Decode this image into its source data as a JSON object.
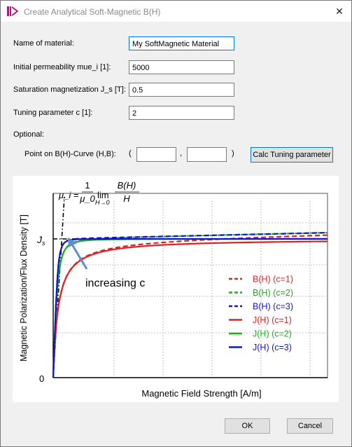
{
  "window": {
    "title": "Create Analytical Soft-Magnetic B(H)",
    "close_symbol": "✕"
  },
  "form": {
    "name_label": "Name of material:",
    "name_value": "My SoftMagnetic Material",
    "mu_label": "Initial permeability mue_i [1]:",
    "mu_value": "5000",
    "js_label": "Saturation magnetization J_s [T]:",
    "js_value": "0.5",
    "c_label": "Tuning parameter c [1]:",
    "c_value": "2",
    "optional_label": "Optional:",
    "point_label": "Point on B(H)-Curve (H,B):",
    "paren_open": "(",
    "comma": ",",
    "paren_close": ")",
    "h_value": "",
    "b_value": "",
    "calc_button": "Calc Tuning parameter"
  },
  "buttons": {
    "ok": "OK",
    "cancel": "Cancel"
  },
  "colors": {
    "red": "#e02020",
    "green": "#18b018",
    "blue": "#1414c8",
    "arrow": "#5b8fc9"
  },
  "chart_data": {
    "type": "line",
    "xlabel": "Magnetic Field Strength [A/m]",
    "ylabel": "Magnetic Polarization/Flux Density [T]",
    "origin_label": "0",
    "js_label": "J_s",
    "formula": {
      "lhs": "μ_i =",
      "frac_num": "1",
      "frac_den": "μ_0",
      "lim": "lim",
      "lim_sub": "H→0",
      "ratio_num": "B(H)",
      "ratio_den": "H"
    },
    "annotation": "increasing c",
    "grid": true,
    "legend_position": "right",
    "xlim": [
      0,
      1
    ],
    "ylim": [
      0,
      1.15
    ],
    "series": [
      {
        "name": "B(H) (c=1)",
        "style": "dashed",
        "color": "#e02020",
        "c": 1,
        "kind": "B"
      },
      {
        "name": "B(H) (c=2)",
        "style": "dashed",
        "color": "#18b018",
        "c": 2,
        "kind": "B"
      },
      {
        "name": "B(H) (c=3)",
        "style": "dashed",
        "color": "#1414c8",
        "c": 3,
        "kind": "B"
      },
      {
        "name": "J(H) (c=1)",
        "style": "solid",
        "color": "#e02020",
        "c": 1,
        "kind": "J"
      },
      {
        "name": "J(H) (c=2)",
        "style": "solid",
        "color": "#18b018",
        "c": 2,
        "kind": "J"
      },
      {
        "name": "J(H) (c=3)",
        "style": "solid",
        "color": "#1414c8",
        "c": 3,
        "kind": "J"
      }
    ]
  }
}
